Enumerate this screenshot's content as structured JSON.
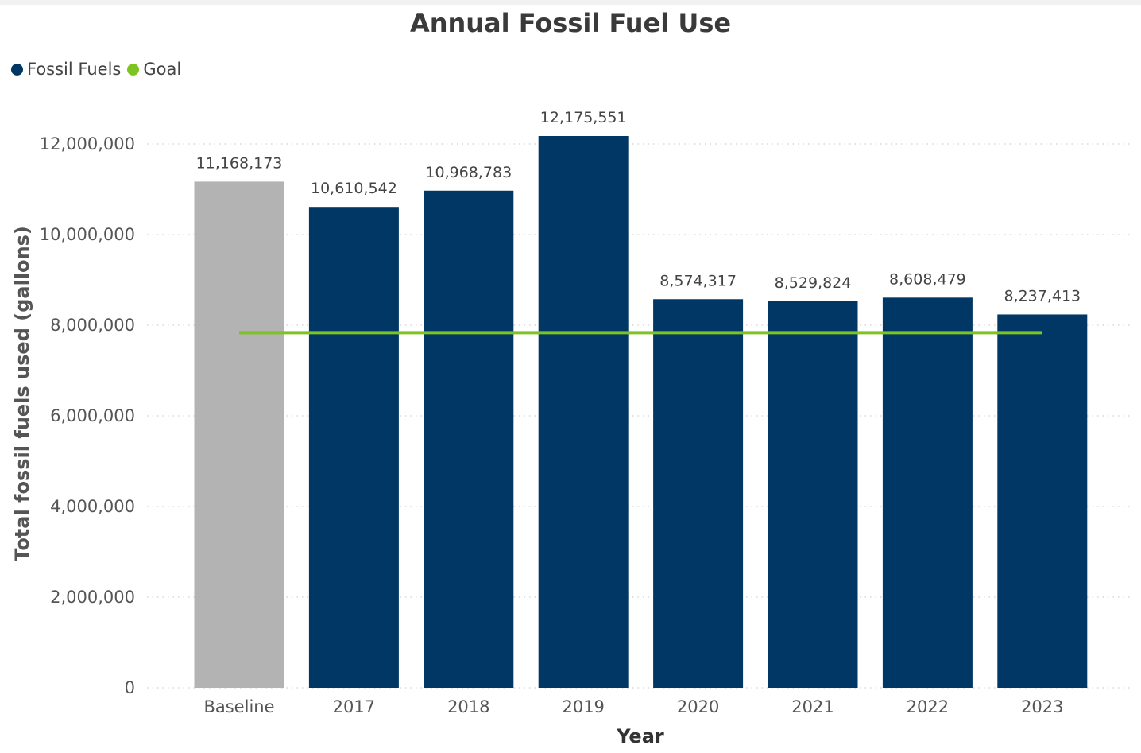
{
  "chart_data": {
    "type": "bar",
    "title": "Annual Fossil Fuel Use",
    "xlabel": "Year",
    "ylabel": "Total fossil fuels used (gallons)",
    "categories": [
      "Baseline",
      "2017",
      "2018",
      "2019",
      "2020",
      "2021",
      "2022",
      "2023"
    ],
    "series": [
      {
        "name": "Fossil Fuels",
        "values": [
          11168173,
          10610542,
          10968783,
          12175551,
          8574317,
          8529824,
          8608479,
          8237413
        ],
        "data_labels": [
          "11,168,173",
          "10,610,542",
          "10,968,783",
          "12,175,551",
          "8,574,317",
          "8,529,824",
          "8,608,479",
          "8,237,413"
        ]
      },
      {
        "name": "Goal",
        "type": "line",
        "values": [
          7835000,
          7835000,
          7835000,
          7835000,
          7835000,
          7835000,
          7835000,
          7835000
        ]
      }
    ],
    "ylim": [
      0,
      12500000
    ],
    "yticks": [
      0,
      2000000,
      4000000,
      6000000,
      8000000,
      10000000,
      12000000
    ],
    "ytick_labels": [
      "0",
      "2,000,000",
      "4,000,000",
      "6,000,000",
      "8,000,000",
      "10,000,000",
      "12,000,000"
    ],
    "grid": true,
    "legend_position": "top-left",
    "colors": {
      "fossil_fuels": "#003764",
      "baseline": "#b3b3b3",
      "goal": "#7dc321",
      "grid": "#cfcfcf"
    }
  }
}
